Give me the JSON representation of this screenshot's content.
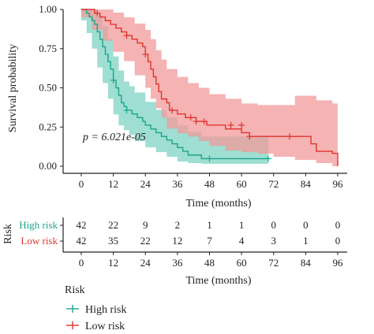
{
  "colors": {
    "high_line": "#1aa58c",
    "high_fill": "#7fd3c3",
    "low_line": "#e0342e",
    "low_fill": "#f29a9a",
    "axis": "#222222"
  },
  "chart_data": {
    "type": "line",
    "subtype": "kaplan-meier",
    "title": "",
    "xlabel": "Time (months)",
    "ylabel": "Survival probability",
    "xlim": [
      0,
      96
    ],
    "ylim": [
      0,
      1
    ],
    "x_ticks": [
      0,
      12,
      24,
      36,
      48,
      60,
      72,
      84,
      96
    ],
    "y_ticks": [
      0.0,
      0.25,
      0.5,
      0.75,
      1.0
    ],
    "y_tick_labels": [
      "0.00",
      "0.25",
      "0.50",
      "0.75",
      "1.00"
    ],
    "annotation": "p = 6.021e-05",
    "grid": false,
    "series": [
      {
        "name": "High risk",
        "color_key": "high",
        "steps": [
          [
            0,
            1.0
          ],
          [
            2,
            0.976
          ],
          [
            3,
            0.952
          ],
          [
            4,
            0.929
          ],
          [
            5,
            0.905
          ],
          [
            6,
            0.857
          ],
          [
            7,
            0.81
          ],
          [
            8,
            0.762
          ],
          [
            9,
            0.714
          ],
          [
            10,
            0.667
          ],
          [
            11,
            0.619
          ],
          [
            12,
            0.548
          ],
          [
            13,
            0.5
          ],
          [
            14,
            0.452
          ],
          [
            15,
            0.405
          ],
          [
            16,
            0.381
          ],
          [
            17,
            0.357
          ],
          [
            19,
            0.333
          ],
          [
            21,
            0.31
          ],
          [
            23,
            0.286
          ],
          [
            24,
            0.262
          ],
          [
            26,
            0.238
          ],
          [
            28,
            0.214
          ],
          [
            30,
            0.19
          ],
          [
            32,
            0.167
          ],
          [
            34,
            0.143
          ],
          [
            36,
            0.119
          ],
          [
            38,
            0.095
          ],
          [
            40,
            0.071
          ],
          [
            45,
            0.048
          ],
          [
            70,
            0.048
          ]
        ],
        "censored": [
          [
            12,
            0.548
          ],
          [
            17,
            0.357
          ],
          [
            48,
            0.048
          ],
          [
            70,
            0.048
          ]
        ],
        "ci": [
          [
            0,
            1.0,
            1.0
          ],
          [
            2,
            1.0,
            0.93
          ],
          [
            4,
            1.0,
            0.85
          ],
          [
            6,
            0.96,
            0.75
          ],
          [
            8,
            0.89,
            0.63
          ],
          [
            10,
            0.81,
            0.53
          ],
          [
            12,
            0.7,
            0.43
          ],
          [
            14,
            0.61,
            0.33
          ],
          [
            16,
            0.54,
            0.26
          ],
          [
            18,
            0.51,
            0.23
          ],
          [
            20,
            0.47,
            0.2
          ],
          [
            24,
            0.41,
            0.16
          ],
          [
            28,
            0.36,
            0.12
          ],
          [
            32,
            0.31,
            0.09
          ],
          [
            36,
            0.26,
            0.06
          ],
          [
            40,
            0.22,
            0.03
          ],
          [
            45,
            0.19,
            0.02
          ],
          [
            50,
            0.19,
            0.015
          ],
          [
            70,
            0.19,
            0.015
          ]
        ]
      },
      {
        "name": "Low risk",
        "color_key": "low",
        "steps": [
          [
            0,
            1.0
          ],
          [
            5,
            0.976
          ],
          [
            7,
            0.952
          ],
          [
            9,
            0.929
          ],
          [
            11,
            0.905
          ],
          [
            13,
            0.881
          ],
          [
            15,
            0.857
          ],
          [
            17,
            0.833
          ],
          [
            19,
            0.81
          ],
          [
            21,
            0.786
          ],
          [
            23,
            0.762
          ],
          [
            24,
            0.714
          ],
          [
            25,
            0.667
          ],
          [
            26,
            0.619
          ],
          [
            27,
            0.571
          ],
          [
            28,
            0.524
          ],
          [
            29,
            0.476
          ],
          [
            30,
            0.429
          ],
          [
            32,
            0.405
          ],
          [
            33,
            0.357
          ],
          [
            36,
            0.333
          ],
          [
            39,
            0.31
          ],
          [
            43,
            0.286
          ],
          [
            47,
            0.262
          ],
          [
            54,
            0.238
          ],
          [
            60,
            0.214
          ],
          [
            63,
            0.19
          ],
          [
            84,
            0.19
          ],
          [
            86,
            0.143
          ],
          [
            88,
            0.095
          ],
          [
            94,
            0.082
          ],
          [
            96,
            0.0
          ]
        ],
        "censored": [
          [
            6,
            0.976
          ],
          [
            17,
            0.833
          ],
          [
            24,
            0.714
          ],
          [
            34,
            0.357
          ],
          [
            41,
            0.31
          ],
          [
            43,
            0.286
          ],
          [
            46,
            0.286
          ],
          [
            56,
            0.262
          ],
          [
            60,
            0.262
          ],
          [
            63,
            0.19
          ],
          [
            78,
            0.19
          ]
        ],
        "ci": [
          [
            0,
            1.0,
            1.0
          ],
          [
            4,
            1.0,
            0.95
          ],
          [
            8,
            1.0,
            0.87
          ],
          [
            12,
            0.98,
            0.8
          ],
          [
            16,
            0.95,
            0.73
          ],
          [
            20,
            0.91,
            0.67
          ],
          [
            24,
            0.87,
            0.58
          ],
          [
            26,
            0.81,
            0.5
          ],
          [
            28,
            0.74,
            0.43
          ],
          [
            30,
            0.68,
            0.37
          ],
          [
            32,
            0.62,
            0.31
          ],
          [
            36,
            0.57,
            0.24
          ],
          [
            40,
            0.53,
            0.21
          ],
          [
            44,
            0.5,
            0.19
          ],
          [
            48,
            0.46,
            0.16
          ],
          [
            54,
            0.43,
            0.13
          ],
          [
            60,
            0.4,
            0.1
          ],
          [
            66,
            0.39,
            0.09
          ],
          [
            72,
            0.39,
            0.08
          ],
          [
            80,
            0.45,
            0.06
          ],
          [
            88,
            0.42,
            0.04
          ],
          [
            94,
            0.4,
            0.02
          ],
          [
            96,
            0.4,
            0.0
          ]
        ]
      }
    ]
  },
  "risk_table": {
    "title": "Risk",
    "xlabel": "Time (months)",
    "x_ticks": [
      0,
      12,
      24,
      36,
      48,
      60,
      72,
      84,
      96
    ],
    "rows": [
      {
        "label": "High risk",
        "color_key": "high",
        "values": [
          42,
          22,
          9,
          2,
          1,
          1,
          0,
          0,
          0
        ]
      },
      {
        "label": "Low risk",
        "color_key": "low",
        "values": [
          42,
          35,
          22,
          12,
          7,
          4,
          3,
          1,
          0
        ]
      }
    ]
  },
  "legend": {
    "title": "Risk",
    "items": [
      {
        "label": "High risk",
        "color_key": "high"
      },
      {
        "label": "Low risk",
        "color_key": "low"
      }
    ]
  }
}
